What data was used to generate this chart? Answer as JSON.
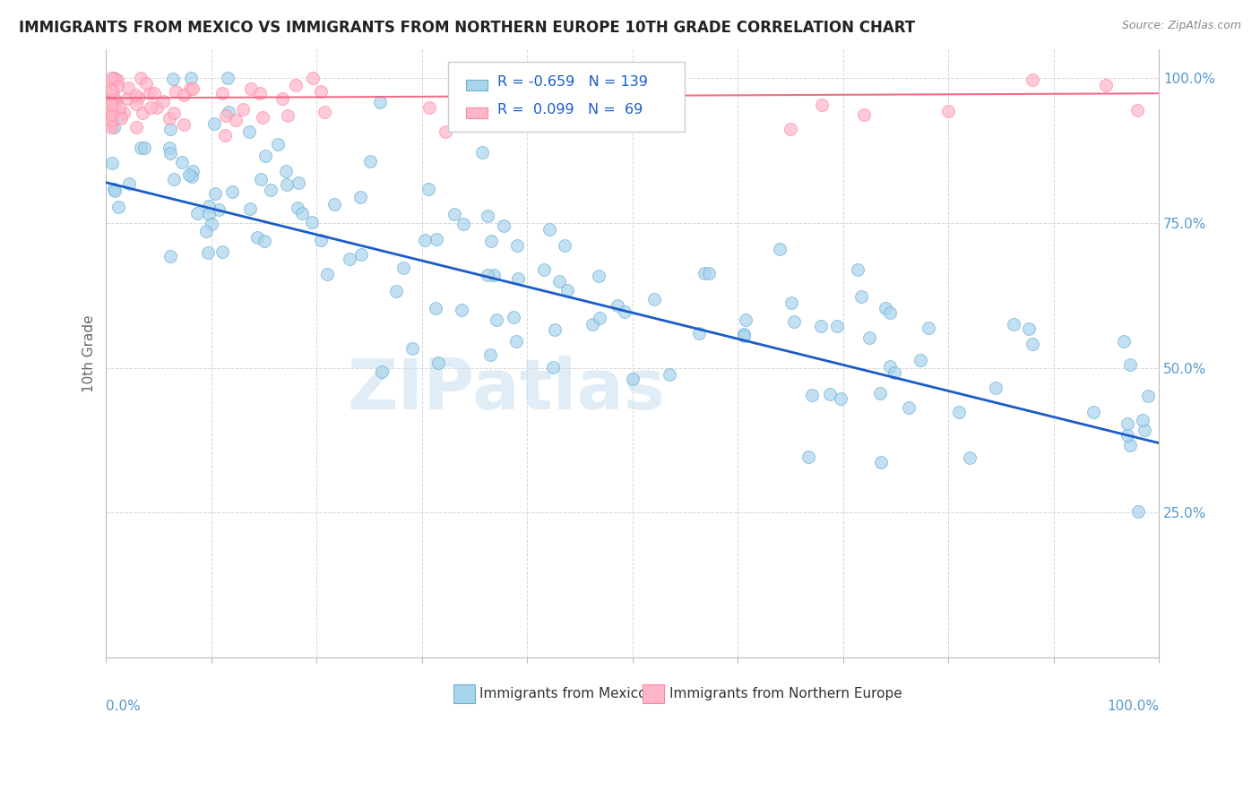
{
  "title": "IMMIGRANTS FROM MEXICO VS IMMIGRANTS FROM NORTHERN EUROPE 10TH GRADE CORRELATION CHART",
  "source": "Source: ZipAtlas.com",
  "ylabel": "10th Grade",
  "legend_label1": "Immigrants from Mexico",
  "legend_label2": "Immigrants from Northern Europe",
  "R1": -0.659,
  "N1": 139,
  "R2": 0.099,
  "N2": 69,
  "color_mexico": "#A8D4EC",
  "color_europe": "#FFB6C8",
  "color_mexico_edge": "#6BAFD6",
  "color_europe_edge": "#FF85A0",
  "trend_color_mexico": "#1A5CC8",
  "trend_color_europe": "#EE5577",
  "watermark": "ZIPatlas",
  "ytick_color": "#5599CC",
  "xtick_color": "#5599CC",
  "grid_color": "#CCCCCC",
  "spine_color": "#BBBBBB",
  "ylabel_color": "#666666"
}
